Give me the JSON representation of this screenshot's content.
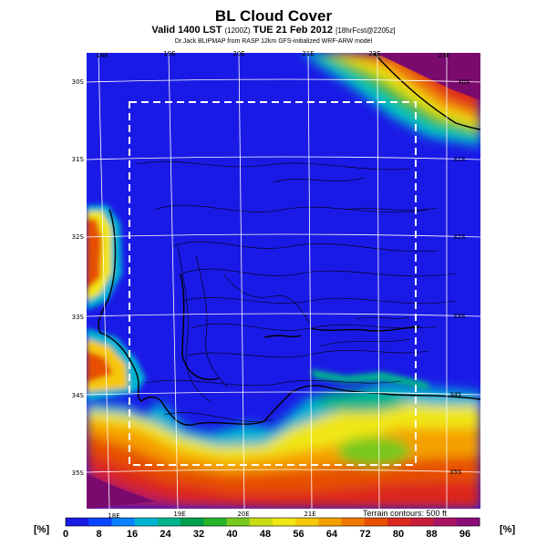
{
  "title": "BL Cloud Cover",
  "subtitle": {
    "main": "Valid 1400 LST",
    "local_time": "(1200Z)",
    "date": "TUE 21 Feb 2012",
    "forecast": "[18hrFcst@2205z]"
  },
  "credit": "Dr.Jack BLIPMAP from RASP 12km GFS-initialized WRF-ARW model",
  "terrain_note": "Terrain contours: 500 ft",
  "lon_labels_top": [
    "18E",
    "19E",
    "20E",
    "21E",
    "22E",
    "23E"
  ],
  "lon_labels_bottom": [
    "18E",
    "19E",
    "20E",
    "21E"
  ],
  "lat_labels_left": [
    "30S",
    "31S",
    "32S",
    "33S",
    "34S",
    "35S"
  ],
  "lat_labels_right": [
    "30S",
    "31S",
    "32S",
    "33S",
    "34S",
    "35S"
  ],
  "colorbar": {
    "unit_left": "[%]",
    "unit_right": "[%]",
    "ticks": [
      "0",
      "8",
      "16",
      "24",
      "32",
      "40",
      "48",
      "56",
      "64",
      "72",
      "80",
      "88",
      "96"
    ],
    "colors": [
      "#1a1ae6",
      "#0a46ff",
      "#0a82ff",
      "#00b4d2",
      "#00b48c",
      "#00a050",
      "#28b428",
      "#78c81e",
      "#c8dc14",
      "#f0e614",
      "#f5c80a",
      "#f5a000",
      "#f07800",
      "#e65000",
      "#dc281e",
      "#c81e3c",
      "#aa1464",
      "#8c0a78"
    ]
  },
  "colors": {
    "ocean_high": "#7a0a6e",
    "clear": "#1a1ae6",
    "grid": "#ffffff",
    "box": "#ffffff"
  }
}
